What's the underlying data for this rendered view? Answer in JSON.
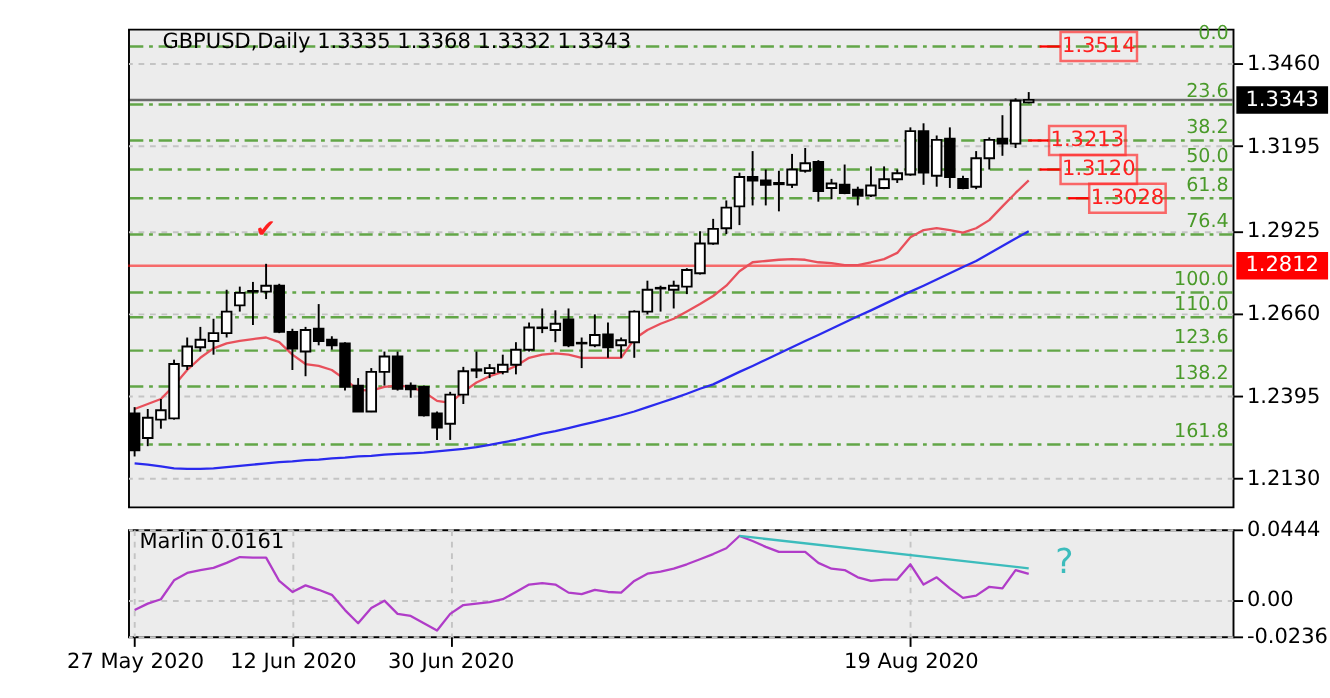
{
  "chart_data": [
    {
      "type": "candlestick",
      "title": "GBPUSD,Daily  1.3335 1.3368 1.3332 1.3343",
      "categories": [
        null,
        null,
        null,
        null,
        null,
        null,
        null,
        null,
        null,
        null,
        null,
        null,
        null,
        null,
        null,
        null,
        null,
        null,
        null,
        null,
        null,
        null,
        null,
        null,
        null,
        null,
        null,
        null,
        null,
        null,
        null,
        null,
        null,
        null,
        null,
        null,
        null,
        null,
        null,
        null,
        null,
        null,
        null,
        null,
        null,
        null,
        null,
        null,
        null,
        null,
        null,
        null,
        null,
        null,
        null,
        null,
        null,
        null,
        null,
        null,
        null,
        null,
        null,
        null,
        null,
        null,
        null,
        null,
        null
      ],
      "ohlc": [
        [
          1.2339,
          1.2359,
          1.2201,
          1.2221
        ],
        [
          1.226,
          1.2353,
          1.2234,
          1.2325
        ],
        [
          1.2319,
          1.2385,
          1.229,
          1.2349
        ],
        [
          1.2323,
          1.2511,
          1.2319,
          1.2497
        ],
        [
          1.2491,
          1.2582,
          1.2478,
          1.2553
        ],
        [
          1.2551,
          1.2616,
          1.2537,
          1.2575
        ],
        [
          1.2571,
          1.2642,
          1.2527,
          1.2596
        ],
        [
          1.2596,
          1.2735,
          1.2582,
          1.2665
        ],
        [
          1.2685,
          1.2745,
          1.2665,
          1.2725
        ],
        [
          1.2729,
          1.276,
          1.2622,
          1.2731
        ],
        [
          1.2729,
          1.2818,
          1.2705,
          1.2748
        ],
        [
          1.2748,
          1.2754,
          1.2596,
          1.26
        ],
        [
          1.26,
          1.261,
          1.2478,
          1.2547
        ],
        [
          1.2537,
          1.2616,
          1.2458,
          1.2606
        ],
        [
          1.261,
          1.2689,
          1.2557,
          1.2571
        ],
        [
          1.2575,
          1.2586,
          1.2543,
          1.2557
        ],
        [
          1.2563,
          1.2567,
          1.2412,
          1.2424
        ],
        [
          1.2428,
          1.2452,
          1.2345,
          1.2345
        ],
        [
          1.2345,
          1.2484,
          1.2343,
          1.2472
        ],
        [
          1.2472,
          1.2537,
          1.2428,
          1.2521
        ],
        [
          1.2521,
          1.2537,
          1.2412,
          1.2418
        ],
        [
          1.2428,
          1.2438,
          1.2389,
          1.2416
        ],
        [
          1.2424,
          1.2428,
          1.2329,
          1.2333
        ],
        [
          1.2339,
          1.2345,
          1.2254,
          1.2294
        ],
        [
          1.2306,
          1.2408,
          1.2254,
          1.2399
        ],
        [
          1.2399,
          1.2488,
          1.2369,
          1.2474
        ],
        [
          1.2476,
          1.2537,
          1.2452,
          1.248
        ],
        [
          1.2468,
          1.2497,
          1.2452,
          1.2484
        ],
        [
          1.2472,
          1.2527,
          1.2464,
          1.2495
        ],
        [
          1.2495,
          1.2567,
          1.2464,
          1.2543
        ],
        [
          1.2543,
          1.263,
          1.2537,
          1.2614
        ],
        [
          1.2612,
          1.2675,
          1.2596,
          1.2614
        ],
        [
          1.2606,
          1.2669,
          1.2567,
          1.2626
        ],
        [
          1.264,
          1.2675,
          1.2551,
          1.2557
        ],
        [
          1.2565,
          1.2582,
          1.2484,
          1.2563
        ],
        [
          1.2557,
          1.2656,
          1.2551,
          1.259
        ],
        [
          1.2592,
          1.263,
          1.2517,
          1.2551
        ],
        [
          1.2557,
          1.2582,
          1.2517,
          1.2573
        ],
        [
          1.2567,
          1.2669,
          1.2517,
          1.2665
        ],
        [
          1.2665,
          1.2764,
          1.2656,
          1.2735
        ],
        [
          1.2739,
          1.2748,
          1.2665,
          1.2741
        ],
        [
          1.2735,
          1.2764,
          1.2675,
          1.2748
        ],
        [
          1.2745,
          1.2804,
          1.2721,
          1.2798
        ],
        [
          1.2788,
          1.2922,
          1.2784,
          1.2883
        ],
        [
          1.2883,
          1.2962,
          1.2879,
          1.293
        ],
        [
          1.2932,
          1.3021,
          1.2913,
          1.2998
        ],
        [
          1.3002,
          1.311,
          1.2942,
          1.3096
        ],
        [
          1.3096,
          1.3179,
          1.3005,
          1.3085
        ],
        [
          1.3085,
          1.312,
          1.3005,
          1.3071
        ],
        [
          1.3077,
          1.3116,
          1.2986,
          1.3073
        ],
        [
          1.3071,
          1.317,
          1.3061,
          1.312
        ],
        [
          1.3116,
          1.3189,
          1.311,
          1.314
        ],
        [
          1.3144,
          1.315,
          1.3017,
          1.3051
        ],
        [
          1.3061,
          1.309,
          1.3025,
          1.3075
        ],
        [
          1.3071,
          1.3136,
          1.3041,
          1.3045
        ],
        [
          1.3055,
          1.3065,
          1.3005,
          1.3036
        ],
        [
          1.3037,
          1.313,
          1.3032,
          1.3069
        ],
        [
          1.3061,
          1.313,
          1.3057,
          1.3089
        ],
        [
          1.3089,
          1.312,
          1.3077,
          1.3108
        ],
        [
          1.3104,
          1.3255,
          1.31,
          1.3243
        ],
        [
          1.3243,
          1.3268,
          1.3071,
          1.311
        ],
        [
          1.31,
          1.3229,
          1.3065,
          1.3215
        ],
        [
          1.3219,
          1.3255,
          1.3061,
          1.3096
        ],
        [
          1.309,
          1.31,
          1.3057,
          1.3061
        ],
        [
          1.3065,
          1.3179,
          1.3057,
          1.3156
        ],
        [
          1.3156,
          1.3223,
          1.312,
          1.3215
        ],
        [
          1.3219,
          1.3294,
          1.3164,
          1.3203
        ],
        [
          1.3203,
          1.3348,
          1.3189,
          1.334
        ],
        [
          1.3335,
          1.3368,
          1.3332,
          1.3343
        ]
      ],
      "series": [
        {
          "type": "line",
          "color": "#e8505b",
          "values": [
            1.2353,
            1.2369,
            1.2385,
            1.2428,
            1.2478,
            1.2517,
            1.2547,
            1.2563,
            1.2571,
            1.2577,
            1.2582,
            1.2567,
            1.2527,
            1.2497,
            1.2491,
            1.2478,
            1.2448,
            1.2414,
            1.2412,
            1.2424,
            1.2428,
            1.2424,
            1.2408,
            1.2379,
            1.2373,
            1.2408,
            1.2438,
            1.2458,
            1.2472,
            1.2491,
            1.2517,
            1.2527,
            1.2531,
            1.2527,
            1.2517,
            1.2517,
            1.2517,
            1.2517,
            1.2577,
            1.2606,
            1.2626,
            1.2642,
            1.2665,
            1.2689,
            1.2715,
            1.2748,
            1.2794,
            1.2823,
            1.2827,
            1.2831,
            1.2833,
            1.2831,
            1.2823,
            1.282,
            1.2814,
            1.2814,
            1.2823,
            1.2833,
            1.2853,
            1.2903,
            1.2926,
            1.2932,
            1.2926,
            1.2918,
            1.2932,
            1.2958,
            1.3002,
            1.3045,
            1.3085
          ]
        },
        {
          "type": "line",
          "color": "#2a2aee",
          "values": [
            1.2179,
            1.2175,
            1.2169,
            1.2163,
            1.2161,
            1.2161,
            1.2163,
            1.2167,
            1.2171,
            1.2175,
            1.2179,
            1.2183,
            1.2185,
            1.2189,
            1.2191,
            1.2195,
            1.2197,
            1.2201,
            1.2203,
            1.2207,
            1.2209,
            1.2211,
            1.2213,
            1.2217,
            1.2221,
            1.2225,
            1.2231,
            1.2238,
            1.2246,
            1.2254,
            1.2264,
            1.2274,
            1.2282,
            1.2292,
            1.2302,
            1.2312,
            1.2322,
            1.2333,
            1.2345,
            1.2359,
            1.2373,
            1.2387,
            1.2402,
            1.2418,
            1.2432,
            1.2452,
            1.2472,
            1.2491,
            1.2511,
            1.2531,
            1.2551,
            1.2571,
            1.259,
            1.261,
            1.263,
            1.265,
            1.2669,
            1.2689,
            1.2709,
            1.2729,
            1.2748,
            1.2768,
            1.2788,
            1.2808,
            1.2827,
            1.2851,
            1.2875,
            1.2899,
            1.2922
          ]
        }
      ],
      "ylim": [
        1.2041,
        1.3571
      ],
      "yticks": [
        {
          "value": 1.346,
          "label": "1.3460"
        },
        1.3195,
        1.2925,
        {
          "value": 1.266,
          "label": "1.2660"
        },
        1.2395,
        {
          "value": 1.213,
          "label": "1.2130"
        }
      ],
      "ref_lines": [
        {
          "axis": "y",
          "value": 1.3514,
          "color": "#4a9a2a",
          "line_style": "dashed"
        },
        {
          "axis": "y",
          "value": 1.3328,
          "color": "#4a9a2a",
          "line_style": "dashed"
        },
        {
          "axis": "y",
          "value": 1.3213,
          "color": "#4a9a2a",
          "line_style": "dashed"
        },
        {
          "axis": "y",
          "value": 1.312,
          "color": "#4a9a2a",
          "line_style": "dashed"
        },
        {
          "axis": "y",
          "value": 1.3028,
          "color": "#4a9a2a",
          "line_style": "dashed"
        },
        {
          "axis": "y",
          "value": 1.2912,
          "color": "#4a9a2a",
          "line_style": "dashed"
        },
        {
          "axis": "y",
          "value": 1.2726,
          "color": "#4a9a2a",
          "line_style": "dashed"
        },
        {
          "axis": "y",
          "value": 1.2647,
          "color": "#4a9a2a",
          "line_style": "dashed"
        },
        {
          "axis": "y",
          "value": 1.254,
          "color": "#4a9a2a",
          "line_style": "dashed"
        },
        {
          "axis": "y",
          "value": 1.2425,
          "color": "#4a9a2a",
          "line_style": "dashed"
        },
        {
          "axis": "y",
          "value": 1.2239,
          "color": "#4a9a2a",
          "line_style": "dashed"
        },
        {
          "axis": "y",
          "value": 1.2812,
          "label": "1.2812",
          "color": "#ff0000",
          "line_style": "solid"
        },
        {
          "axis": "y",
          "value": 1.3343,
          "label": "1.3343",
          "color": "#000000",
          "line_style": "solid"
        }
      ],
      "annotations": [
        {
          "text": "0.0",
          "y": 1.3514
        },
        {
          "text": "23.6",
          "y": 1.3328
        },
        {
          "text": "38.2",
          "y": 1.3213
        },
        {
          "text": "50.0",
          "y": 1.312
        },
        {
          "text": "61.8",
          "y": 1.3028
        },
        {
          "text": "76.4",
          "y": 1.2912
        },
        {
          "text": "100.0",
          "y": 1.2726
        },
        {
          "text": "110.0",
          "y": 1.2647
        },
        {
          "text": "123.6",
          "y": 1.254
        },
        {
          "text": "138.2",
          "y": 1.2425
        },
        {
          "text": "161.8",
          "y": 1.2239
        },
        {
          "text": "1.3514",
          "y": 1.3514
        },
        {
          "text": "1.3213",
          "y": 1.3213
        },
        {
          "text": "1.3120",
          "y": 1.312
        },
        {
          "text": "1.3028",
          "y": 1.3028
        },
        "✔"
      ],
      "grid": true,
      "tick_labels": "y"
    },
    {
      "type": "line",
      "title": "Marlin 0.0161",
      "categories": [
        "27 May 2020",
        null,
        null,
        null,
        null,
        null,
        null,
        null,
        null,
        null,
        null,
        null,
        "12 Jun 2020",
        null,
        null,
        null,
        null,
        null,
        null,
        null,
        null,
        null,
        null,
        null,
        "30 Jun 2020",
        null,
        null,
        null,
        null,
        null,
        null,
        null,
        null,
        null,
        null,
        null,
        null,
        null,
        null,
        null,
        null,
        null,
        null,
        null,
        null,
        null,
        null,
        null,
        null,
        null,
        null,
        null,
        null,
        null,
        null,
        null,
        null,
        null,
        null,
        "19 Aug 2020",
        null,
        null,
        null,
        null,
        null,
        null,
        null,
        null,
        null
      ],
      "series": [
        {
          "color": "#b03cc8",
          "values": [
            -0.0069,
            -0.0028,
            0,
            0.012,
            0.0167,
            0.0185,
            0.0199,
            0.0231,
            0.0268,
            0.0264,
            0.0264,
            0.0116,
            0.0046,
            0.0088,
            0.006,
            0.0028,
            -0.0069,
            -0.0153,
            -0.0056,
            -0.0009,
            -0.0093,
            -0.0106,
            -0.0153,
            -0.0199,
            -0.0093,
            -0.0037,
            -0.0028,
            -0.0019,
            0,
            0.0046,
            0.0093,
            0.0102,
            0.0093,
            0.0042,
            0.0032,
            0.006,
            0.0046,
            0.0042,
            0.0116,
            0.0162,
            0.0176,
            0.0194,
            0.0222,
            0.0254,
            0.0287,
            0.0324,
            0.0402,
            0.037,
            0.0333,
            0.0301,
            0.0301,
            0.0301,
            0.0231,
            0.0194,
            0.0185,
            0.0139,
            0.0116,
            0.0125,
            0.0125,
            0.0222,
            0.0093,
            0.0139,
            0.0069,
            0.0009,
            0.0023,
            0.0079,
            0.0069,
            0.0185,
            0.0161
          ]
        },
        {
          "type": "line",
          "color": "#3cbcbc",
          "values": [
            null,
            null,
            null,
            null,
            null,
            null,
            null,
            null,
            null,
            null,
            null,
            null,
            null,
            null,
            null,
            null,
            null,
            null,
            null,
            null,
            null,
            null,
            null,
            null,
            null,
            null,
            null,
            null,
            null,
            null,
            null,
            null,
            null,
            null,
            null,
            null,
            null,
            null,
            null,
            null,
            null,
            null,
            null,
            null,
            null,
            null,
            0.0402,
            null,
            null,
            null,
            null,
            null,
            null,
            null,
            null,
            null,
            null,
            null,
            null,
            null,
            null,
            null,
            null,
            null,
            null,
            null,
            null,
            null,
            0.0196
          ]
        }
      ],
      "ylim": [
        -0.0236,
        0.0444
      ],
      "yticks": [
        0.0444,
        {
          "value": 0,
          "label": "0.00"
        },
        -0.0236
      ],
      "annotations": [
        "?"
      ],
      "grid": true
    }
  ]
}
